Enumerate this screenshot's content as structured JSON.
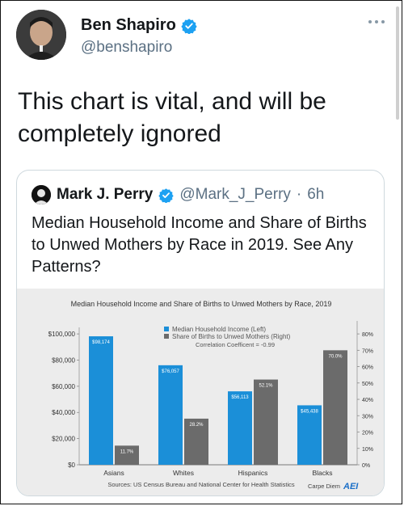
{
  "tweet": {
    "author_name": "Ben Shapiro",
    "author_handle": "@benshapiro",
    "text": "This chart is vital, and will be completely ignored"
  },
  "quoted_tweet": {
    "author_name": "Mark J. Perry",
    "author_handle": "@Mark_J_Perry",
    "separator": "·",
    "time": "6h",
    "text": "Median Household Income and Share of Births to Unwed Mothers by Race in 2019. See Any Patterns?"
  },
  "icons": {
    "verified": "verified-badge-icon",
    "more": "more-options-icon"
  },
  "colors": {
    "verified": "#1da1f2",
    "income_bar": "#1b8fd8",
    "births_bar": "#6b6b6b",
    "chart_bg": "#ececec"
  },
  "chart_data": {
    "type": "bar",
    "title": "Median Household Income and Share of Births to Unwed Mothers by Race, 2019",
    "categories": [
      "Asians",
      "Whites",
      "Hispanics",
      "Blacks"
    ],
    "series": [
      {
        "name": "Median Household Income (Left)",
        "axis": "left",
        "values": [
          98174,
          76057,
          56113,
          45438
        ],
        "labels": [
          "$98,174",
          "$76,057",
          "$56,113",
          "$45,438"
        ]
      },
      {
        "name": "Share of Births to Unwed Mothers (Right)",
        "axis": "right",
        "values": [
          11.7,
          28.2,
          52.1,
          70.0
        ],
        "labels": [
          "11.7%",
          "28.2%",
          "52.1%",
          "70.0%"
        ]
      }
    ],
    "left_ticks": [
      "$0",
      "$20,000",
      "$40,000",
      "$60,000",
      "$80,000",
      "$100,000"
    ],
    "left_ylim": [
      0,
      105000
    ],
    "right_ticks": [
      "0%",
      "10%",
      "20%",
      "30%",
      "40%",
      "50%",
      "60%",
      "70%",
      "80%"
    ],
    "right_ylim": [
      0,
      84
    ],
    "annotation": "Correlation Coefficent = -0.99",
    "source": "Sources: US Census Bureau and National Center for Health Statistics",
    "credit": "Carpe Diem",
    "credit_logo": "AEI",
    "legend_position": "top-center",
    "grid": false
  }
}
